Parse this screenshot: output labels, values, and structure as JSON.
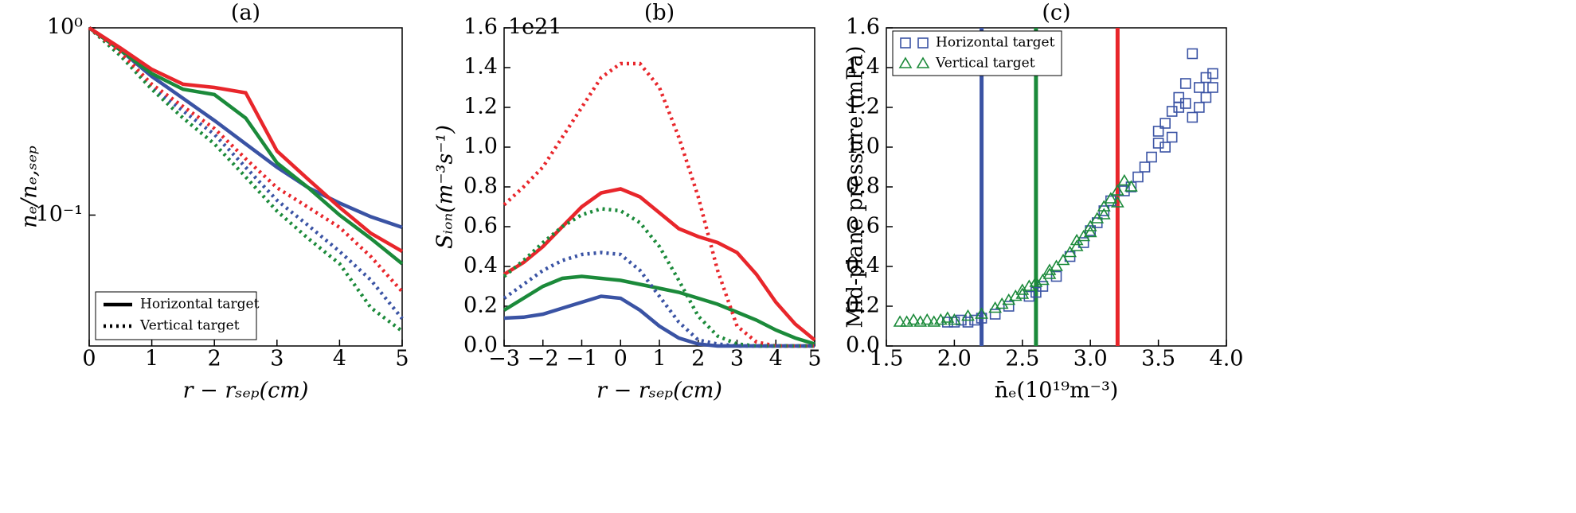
{
  "chart_data": [
    {
      "type": "line",
      "title": "(a)",
      "x_label": "r − rₛₑₚ(cm)",
      "y_label": "nₑ/nₑ,ₛₑₚ",
      "xlim": [
        0,
        5
      ],
      "xticks": [
        0,
        1,
        2,
        3,
        4,
        5
      ],
      "ylim": [
        0.02,
        1
      ],
      "yscale": "log",
      "yticks": [
        {
          "value": 1,
          "label": "10⁰"
        },
        {
          "value": 0.1,
          "label": "10⁻¹"
        }
      ],
      "x": [
        0,
        0.5,
        1,
        1.5,
        2,
        2.5,
        3,
        3.5,
        4,
        4.5,
        5
      ],
      "series": [
        {
          "color": "#3a53a4",
          "linestyle": "solid",
          "values": [
            1,
            0.76,
            0.55,
            0.42,
            0.32,
            0.24,
            0.18,
            0.14,
            0.116,
            0.098,
            0.086
          ]
        },
        {
          "color": "#1b8a3a",
          "linestyle": "solid",
          "values": [
            1,
            0.76,
            0.57,
            0.47,
            0.44,
            0.33,
            0.19,
            0.14,
            0.1,
            0.075,
            0.055
          ]
        },
        {
          "color": "#e8262b",
          "linestyle": "solid",
          "values": [
            1,
            0.78,
            0.6,
            0.5,
            0.48,
            0.45,
            0.22,
            0.155,
            0.11,
            0.08,
            0.064
          ]
        },
        {
          "color": "#3a53a4",
          "linestyle": "dotted",
          "values": [
            1,
            0.72,
            0.48,
            0.36,
            0.27,
            0.18,
            0.12,
            0.088,
            0.064,
            0.045,
            0.028
          ]
        },
        {
          "color": "#1b8a3a",
          "linestyle": "dotted",
          "values": [
            1,
            0.71,
            0.47,
            0.33,
            0.24,
            0.16,
            0.105,
            0.075,
            0.055,
            0.032,
            0.024
          ]
        },
        {
          "color": "#e8262b",
          "linestyle": "dotted",
          "values": [
            1,
            0.74,
            0.5,
            0.38,
            0.29,
            0.2,
            0.14,
            0.11,
            0.086,
            0.06,
            0.039
          ]
        }
      ],
      "legend": {
        "loc": "lower left",
        "entries": [
          {
            "name": "Horizontal target",
            "linestyle": "solid"
          },
          {
            "name": "Vertical target",
            "linestyle": "dotted"
          }
        ]
      }
    },
    {
      "type": "line",
      "title": "(b)",
      "x_label": "r − rₛₑₚ(cm)",
      "y_label": "Sᵢₒₙ(m⁻³s⁻¹)",
      "offset_text": "1e21",
      "xlim": [
        -3,
        5
      ],
      "xticks": [
        {
          "value": -3,
          "label": "−3"
        },
        {
          "value": -2,
          "label": "−2"
        },
        {
          "value": -1,
          "label": "−1"
        },
        0,
        1,
        2,
        3,
        4,
        5
      ],
      "ylim": [
        0,
        1.6
      ],
      "yticks": [
        {
          "value": 0,
          "label": "0.0"
        },
        0.2,
        0.4,
        0.6,
        0.8,
        {
          "value": 1,
          "label": "1.0"
        },
        1.2,
        1.4,
        1.6
      ],
      "x": [
        -3,
        -2.5,
        -2,
        -1.5,
        -1,
        -0.5,
        0,
        0.5,
        1,
        1.5,
        2,
        2.5,
        3,
        3.5,
        4,
        4.5,
        5
      ],
      "series": [
        {
          "color": "#e8262b",
          "linestyle": "solid",
          "values": [
            0.36,
            0.42,
            0.5,
            0.6,
            0.7,
            0.77,
            0.79,
            0.75,
            0.67,
            0.59,
            0.55,
            0.52,
            0.47,
            0.36,
            0.22,
            0.11,
            0.03
          ]
        },
        {
          "color": "#1b8a3a",
          "linestyle": "solid",
          "values": [
            0.18,
            0.24,
            0.3,
            0.34,
            0.35,
            0.34,
            0.33,
            0.31,
            0.29,
            0.27,
            0.24,
            0.21,
            0.17,
            0.13,
            0.08,
            0.04,
            0.01
          ]
        },
        {
          "color": "#3a53a4",
          "linestyle": "solid",
          "values": [
            0.14,
            0.145,
            0.16,
            0.19,
            0.22,
            0.25,
            0.24,
            0.18,
            0.1,
            0.04,
            0.01,
            0,
            0,
            0,
            0,
            0,
            0
          ]
        },
        {
          "color": "#e8262b",
          "linestyle": "dotted",
          "values": [
            0.71,
            0.8,
            0.9,
            1.05,
            1.2,
            1.35,
            1.42,
            1.42,
            1.3,
            1.05,
            0.75,
            0.38,
            0.1,
            0.02,
            0,
            0,
            0
          ]
        },
        {
          "color": "#1b8a3a",
          "linestyle": "dotted",
          "values": [
            0.35,
            0.43,
            0.52,
            0.6,
            0.66,
            0.69,
            0.68,
            0.62,
            0.5,
            0.33,
            0.15,
            0.05,
            0.01,
            0,
            0,
            0,
            0
          ]
        },
        {
          "color": "#3a53a4",
          "linestyle": "dotted",
          "values": [
            0.24,
            0.31,
            0.38,
            0.43,
            0.46,
            0.47,
            0.46,
            0.38,
            0.25,
            0.12,
            0.03,
            0.01,
            0,
            0,
            0,
            0,
            0
          ]
        }
      ]
    },
    {
      "type": "scatter",
      "title": "(c)",
      "x_label": "n̄ₑ(10¹⁹m⁻³)",
      "y_label": "Mid-plane pressure (mPa)",
      "xlim": [
        1.5,
        4
      ],
      "xticks": [
        1.5,
        {
          "value": 2,
          "label": "2.0"
        },
        2.5,
        {
          "value": 3,
          "label": "3.0"
        },
        3.5,
        {
          "value": 4,
          "label": "4.0"
        }
      ],
      "ylim": [
        0,
        1.6
      ],
      "yticks": [
        {
          "value": 0,
          "label": "0.0"
        },
        0.2,
        0.4,
        0.6,
        0.8,
        {
          "value": 1,
          "label": "1.0"
        },
        1.2,
        1.4,
        1.6
      ],
      "legend_loc": "upper left",
      "reference_lines": [
        {
          "x": 2.2,
          "color": "#3a53a4"
        },
        {
          "x": 2.6,
          "color": "#1b8a3a"
        },
        {
          "x": 3.2,
          "color": "#e8262b"
        }
      ],
      "series": [
        {
          "name": "Horizontal target",
          "marker": "square",
          "color": "#3a53a4",
          "x": [
            1.95,
            2.0,
            2.05,
            2.1,
            2.15,
            2.2,
            2.3,
            2.4,
            2.55,
            2.6,
            2.65,
            2.75,
            2.85,
            2.95,
            3.0,
            3.05,
            3.1,
            3.15,
            3.25,
            3.3,
            3.35,
            3.4,
            3.45,
            3.5,
            3.5,
            3.55,
            3.55,
            3.6,
            3.6,
            3.65,
            3.65,
            3.7,
            3.7,
            3.75,
            3.75,
            3.8,
            3.8,
            3.85,
            3.85,
            3.9,
            3.9
          ],
          "values": [
            0.12,
            0.12,
            0.13,
            0.12,
            0.13,
            0.14,
            0.16,
            0.2,
            0.25,
            0.27,
            0.3,
            0.35,
            0.45,
            0.52,
            0.58,
            0.62,
            0.68,
            0.73,
            0.78,
            0.8,
            0.85,
            0.9,
            0.95,
            1.02,
            1.08,
            1.0,
            1.12,
            1.05,
            1.18,
            1.25,
            1.2,
            1.32,
            1.22,
            1.47,
            1.15,
            1.2,
            1.3,
            1.35,
            1.25,
            1.3,
            1.37
          ]
        },
        {
          "name": "Vertical target",
          "marker": "triangle",
          "color": "#1b8a3a",
          "x": [
            1.6,
            1.65,
            1.7,
            1.75,
            1.8,
            1.85,
            1.9,
            1.95,
            2.0,
            2.1,
            2.2,
            2.3,
            2.35,
            2.4,
            2.45,
            2.5,
            2.55,
            2.6,
            2.65,
            2.7,
            2.75,
            2.8,
            2.85,
            2.9,
            2.95,
            3.0,
            3.05,
            3.1,
            3.15,
            3.2,
            3.25,
            3.3,
            3.1,
            2.9,
            2.7,
            2.5,
            3.0,
            3.2
          ],
          "values": [
            0.12,
            0.12,
            0.13,
            0.12,
            0.13,
            0.12,
            0.13,
            0.14,
            0.13,
            0.15,
            0.16,
            0.19,
            0.21,
            0.23,
            0.25,
            0.28,
            0.3,
            0.32,
            0.33,
            0.36,
            0.4,
            0.43,
            0.47,
            0.5,
            0.55,
            0.6,
            0.64,
            0.7,
            0.74,
            0.78,
            0.83,
            0.8,
            0.66,
            0.53,
            0.38,
            0.26,
            0.57,
            0.72
          ]
        }
      ]
    }
  ]
}
